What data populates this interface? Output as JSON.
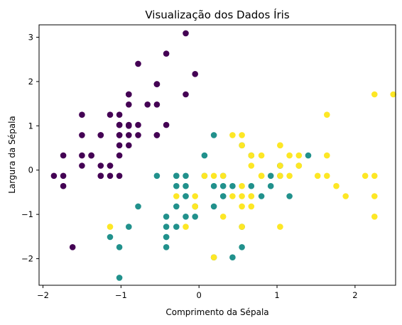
{
  "chart_data": {
    "type": "scatter",
    "title": "Visualização dos Dados Íris",
    "xlabel": "Comprimento da Sépala",
    "ylabel": "Largura da Sépala",
    "xlim": [
      -2.05,
      2.52
    ],
    "ylim": [
      -2.6,
      3.28
    ],
    "xticks": [
      -2,
      -1,
      0,
      1,
      2
    ],
    "yticks": [
      -2,
      -1,
      0,
      1,
      2,
      3
    ],
    "grid": false,
    "series": [
      {
        "color": "#440154",
        "points": [
          [
            -0.9,
            1.0
          ],
          [
            -1.14,
            -0.13
          ],
          [
            -1.38,
            0.33
          ],
          [
            -1.5,
            0.1
          ],
          [
            -1.02,
            1.25
          ],
          [
            -0.54,
            1.94
          ],
          [
            -1.5,
            0.79
          ],
          [
            -1.02,
            0.79
          ],
          [
            -1.74,
            -0.36
          ],
          [
            -1.14,
            0.1
          ],
          [
            -0.54,
            1.48
          ],
          [
            -1.26,
            0.79
          ],
          [
            -1.26,
            -0.13
          ],
          [
            -1.86,
            -0.13
          ],
          [
            -0.05,
            2.17
          ],
          [
            -0.17,
            3.09
          ],
          [
            -0.54,
            1.94
          ],
          [
            -0.9,
            1.02
          ],
          [
            -0.17,
            1.71
          ],
          [
            -0.9,
            1.71
          ],
          [
            -0.54,
            0.79
          ],
          [
            -0.9,
            1.48
          ],
          [
            -1.5,
            1.25
          ],
          [
            -0.9,
            0.56
          ],
          [
            -1.26,
            0.79
          ],
          [
            -1.02,
            -0.13
          ],
          [
            -1.02,
            0.79
          ],
          [
            -0.78,
            1.02
          ],
          [
            -0.78,
            0.79
          ],
          [
            -1.38,
            0.33
          ],
          [
            -1.26,
            0.1
          ],
          [
            -0.54,
            0.79
          ],
          [
            -0.78,
            2.4
          ],
          [
            -0.42,
            2.63
          ],
          [
            -1.14,
            0.1
          ],
          [
            -1.02,
            0.33
          ],
          [
            -0.42,
            1.02
          ],
          [
            -1.14,
            1.25
          ],
          [
            -1.74,
            -0.13
          ],
          [
            -0.9,
            0.79
          ],
          [
            -1.02,
            1.02
          ],
          [
            -1.62,
            -1.74
          ],
          [
            -1.74,
            0.33
          ],
          [
            -1.02,
            1.02
          ],
          [
            -0.9,
            1.71
          ],
          [
            -1.26,
            -0.13
          ],
          [
            -0.9,
            1.71
          ],
          [
            -1.5,
            0.33
          ],
          [
            -0.66,
            1.48
          ],
          [
            -1.02,
            0.56
          ]
        ]
      },
      {
        "color": "#21918c",
        "points": [
          [
            1.4,
            0.33
          ],
          [
            0.67,
            0.33
          ],
          [
            1.28,
            0.1
          ],
          [
            -0.42,
            -1.74
          ],
          [
            0.8,
            -0.59
          ],
          [
            -0.17,
            -0.59
          ],
          [
            0.55,
            0.56
          ],
          [
            -1.14,
            -1.51
          ],
          [
            0.92,
            -0.36
          ],
          [
            -0.78,
            -0.82
          ],
          [
            -1.02,
            -2.43
          ],
          [
            0.07,
            -0.13
          ],
          [
            0.19,
            -1.97
          ],
          [
            0.31,
            -0.36
          ],
          [
            -0.29,
            -0.36
          ],
          [
            1.04,
            0.1
          ],
          [
            -0.29,
            -0.13
          ],
          [
            -0.05,
            -0.82
          ],
          [
            0.43,
            -1.97
          ],
          [
            -0.29,
            -1.28
          ],
          [
            0.07,
            0.33
          ],
          [
            0.31,
            -0.59
          ],
          [
            0.55,
            -1.28
          ],
          [
            0.31,
            -0.59
          ],
          [
            0.67,
            -0.36
          ],
          [
            0.92,
            -0.13
          ],
          [
            1.16,
            -0.59
          ],
          [
            1.04,
            -0.13
          ],
          [
            0.19,
            -0.36
          ],
          [
            -0.17,
            -1.05
          ],
          [
            -0.42,
            -1.51
          ],
          [
            -0.42,
            -1.51
          ],
          [
            -0.05,
            -0.82
          ],
          [
            0.19,
            -0.82
          ],
          [
            -0.54,
            -0.13
          ],
          [
            0.19,
            0.79
          ],
          [
            1.04,
            0.1
          ],
          [
            0.55,
            -1.74
          ],
          [
            -0.29,
            -0.13
          ],
          [
            -0.42,
            -1.28
          ],
          [
            -0.42,
            -1.05
          ],
          [
            0.31,
            -0.13
          ],
          [
            -0.05,
            -1.05
          ],
          [
            -1.02,
            -1.74
          ],
          [
            -0.29,
            -0.82
          ],
          [
            -0.17,
            -0.13
          ],
          [
            -0.17,
            -0.36
          ],
          [
            0.43,
            -0.36
          ],
          [
            -0.9,
            -1.28
          ],
          [
            -0.17,
            -0.59
          ]
        ]
      },
      {
        "color": "#fde725",
        "points": [
          [
            0.55,
            0.56
          ],
          [
            -0.05,
            -0.82
          ],
          [
            1.52,
            -0.13
          ],
          [
            0.55,
            -0.36
          ],
          [
            0.8,
            -0.13
          ],
          [
            2.13,
            -0.13
          ],
          [
            -1.14,
            -1.28
          ],
          [
            1.76,
            -0.36
          ],
          [
            1.04,
            -1.28
          ],
          [
            1.64,
            1.25
          ],
          [
            0.8,
            0.33
          ],
          [
            0.67,
            -0.82
          ],
          [
            1.16,
            -0.13
          ],
          [
            -0.17,
            -1.28
          ],
          [
            -0.05,
            -0.59
          ],
          [
            0.67,
            0.33
          ],
          [
            0.8,
            -0.13
          ],
          [
            2.25,
            1.71
          ],
          [
            2.25,
            -1.05
          ],
          [
            0.19,
            -1.97
          ],
          [
            1.28,
            0.33
          ],
          [
            -0.29,
            -0.59
          ],
          [
            2.25,
            -0.59
          ],
          [
            0.55,
            -0.82
          ],
          [
            1.04,
            0.56
          ],
          [
            1.64,
            0.33
          ],
          [
            0.43,
            -0.59
          ],
          [
            0.31,
            -0.13
          ],
          [
            0.67,
            -0.59
          ],
          [
            1.64,
            -0.13
          ],
          [
            1.88,
            -0.59
          ],
          [
            2.49,
            1.71
          ],
          [
            0.67,
            -0.59
          ],
          [
            0.55,
            -0.59
          ],
          [
            0.31,
            -1.05
          ],
          [
            2.25,
            -0.13
          ],
          [
            0.55,
            0.79
          ],
          [
            0.67,
            0.1
          ],
          [
            0.19,
            -0.13
          ],
          [
            1.28,
            0.1
          ],
          [
            1.04,
            0.1
          ],
          [
            1.28,
            0.1
          ],
          [
            -0.05,
            -0.82
          ],
          [
            1.16,
            0.33
          ],
          [
            1.04,
            0.56
          ],
          [
            1.04,
            -0.13
          ],
          [
            0.55,
            -1.28
          ],
          [
            0.8,
            -0.13
          ],
          [
            0.43,
            0.79
          ],
          [
            0.07,
            -0.13
          ]
        ]
      }
    ]
  }
}
